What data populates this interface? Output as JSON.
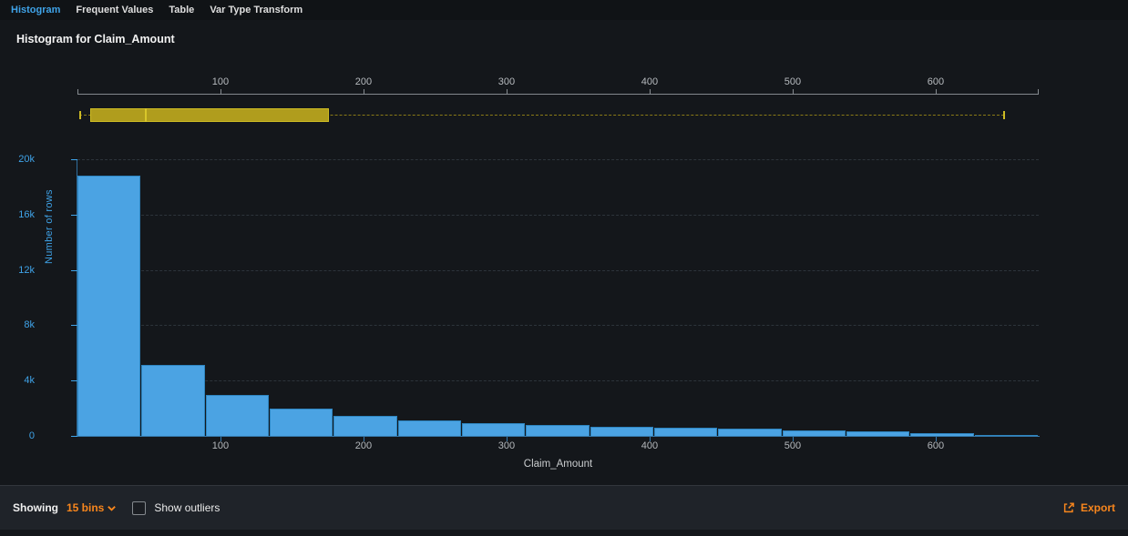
{
  "tabs": {
    "items": [
      {
        "label": "Histogram",
        "active": true
      },
      {
        "label": "Frequent Values",
        "active": false
      },
      {
        "label": "Table",
        "active": false
      },
      {
        "label": "Var Type Transform",
        "active": false
      }
    ]
  },
  "header": {
    "title": "Histogram for Claim_Amount"
  },
  "footer": {
    "showing_label": "Showing",
    "bins_value": "15 bins",
    "show_outliers_label": "Show outliers",
    "export_label": "Export"
  },
  "icons": {
    "bins_dropdown": "chevron-down-icon",
    "export": "export-icon"
  },
  "colors": {
    "page_bg": "#14171b",
    "footer_bg": "#1f2329",
    "accent_blue": "#3fa3e8",
    "bar_fill": "#4ba3e3",
    "orange": "#f8861d",
    "box_fill": "#b09d1d",
    "box_border": "#cdbb24",
    "box_median": "#d8c62a",
    "box_dash": "#8a7a16",
    "grid": "#2d343b"
  },
  "chart_data": {
    "type": "bar",
    "title": "Histogram for Claim_Amount",
    "xlabel": "Claim_Amount",
    "ylabel": "Number of rows",
    "bins": 15,
    "xlim": [
      0,
      672
    ],
    "ylim": [
      0,
      20000
    ],
    "x_ticks": [
      100,
      200,
      300,
      400,
      500,
      600
    ],
    "y_ticks": [
      {
        "v": 0,
        "label": "0"
      },
      {
        "v": 4000,
        "label": "4k"
      },
      {
        "v": 8000,
        "label": "8k"
      },
      {
        "v": 12000,
        "label": "12k"
      },
      {
        "v": 16000,
        "label": "16k"
      },
      {
        "v": 20000,
        "label": "20k"
      }
    ],
    "bin_start": 0,
    "bin_width": 44.8,
    "values": [
      18800,
      5100,
      2950,
      1950,
      1450,
      1100,
      900,
      800,
      660,
      590,
      520,
      400,
      330,
      200,
      80
    ],
    "boxplot": {
      "min": 1,
      "q1": 9,
      "median": 47,
      "q3": 176,
      "max": 648
    },
    "grid": "horizontal-dashed",
    "legend": "none"
  }
}
